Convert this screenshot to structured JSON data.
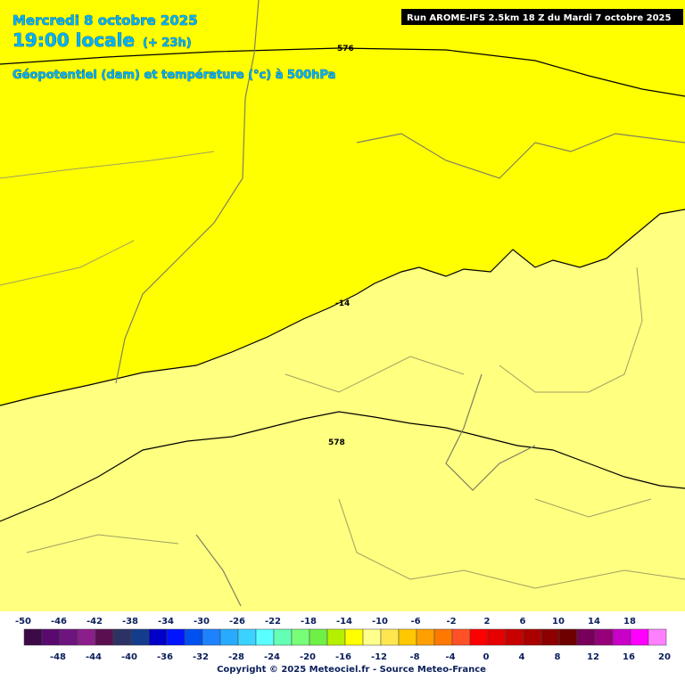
{
  "header": {
    "date": "Mercredi 8 octobre 2025",
    "time": "19:00 locale",
    "lead": "(+ 23h)",
    "field": "Géopotentiel (dam) et température (°c) à 500hPa",
    "run": "Run AROME-IFS 2.5km 18 Z du Mardi 7 octobre 2025"
  },
  "contour_labels": [
    "576",
    "-14",
    "578"
  ],
  "legend": {
    "values": [
      -50,
      -48,
      -46,
      -44,
      -42,
      -40,
      -38,
      -36,
      -34,
      -32,
      -30,
      -28,
      -26,
      -24,
      -22,
      -20,
      -18,
      -16,
      -14,
      -12,
      -10,
      -8,
      -6,
      -4,
      -2,
      0,
      2,
      4,
      6,
      8,
      10,
      12,
      14,
      16,
      18,
      20
    ],
    "colors": [
      "#3c0a46",
      "#5a0a6e",
      "#6e147f",
      "#8c1e8c",
      "#5a0f50",
      "#2d3264",
      "#143c8c",
      "#0000c8",
      "#0014ff",
      "#0050f0",
      "#1e82ff",
      "#28aaff",
      "#3cd2ff",
      "#5affff",
      "#64ffb4",
      "#78ff78",
      "#6ef046",
      "#b4f000",
      "#ffff00",
      "#ffff8c",
      "#ffe650",
      "#ffc800",
      "#ffa000",
      "#ff7800",
      "#ff5028",
      "#ff0000",
      "#e60000",
      "#c80000",
      "#aa0000",
      "#8c0000",
      "#6e0000",
      "#78005a",
      "#960078",
      "#c800c8",
      "#ff00ff",
      "#ff80ff"
    ]
  },
  "copyright": "Copyright © 2025 Meteociel.fr - Source Meteo-France"
}
